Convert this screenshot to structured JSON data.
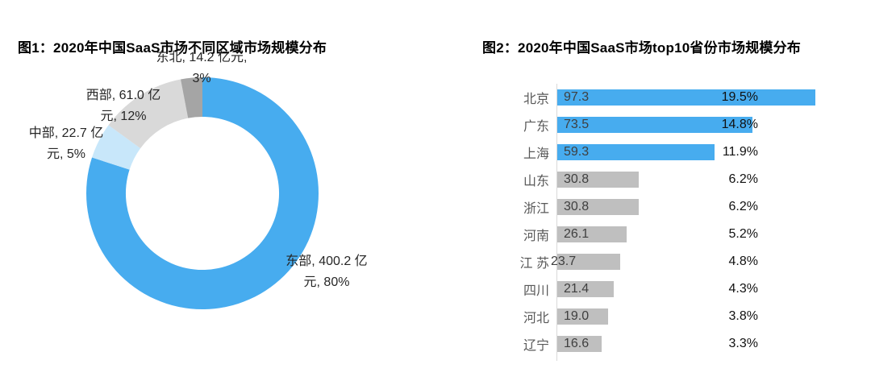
{
  "figure1": {
    "title": "图1：2020年中国SaaS市场不同区域市场规模分布"
  },
  "figure2": {
    "title": "图2：2020年中国SaaS市场top10省份市场规模分布"
  },
  "chart_data": [
    {
      "type": "pie",
      "subtype": "donut",
      "title": "图1：2020年中国SaaS市场不同区域市场规模分布",
      "unit": "亿元",
      "donut_hole_ratio": 0.66,
      "start_angle": "top",
      "direction": "clockwise",
      "slices": [
        {
          "label": "东部",
          "value": 400.2,
          "percent": 80,
          "color": "#47ACEF",
          "data_label_lines": [
            "东部, 400.2 亿",
            "元, 80%"
          ]
        },
        {
          "label": "中部",
          "value": 22.7,
          "percent": 5,
          "color": "#C8E7FA",
          "data_label_lines": [
            "中部, 22.7 亿",
            "元, 5%"
          ]
        },
        {
          "label": "西部",
          "value": 61.0,
          "percent": 12,
          "color": "#D9D9D9",
          "data_label_lines": [
            "西部, 61.0 亿",
            "元, 12%"
          ]
        },
        {
          "label": "东北",
          "value": 14.2,
          "percent": 3,
          "color": "#A5A5A5",
          "data_label_lines": [
            "东北, 14.2 亿元,",
            "3%"
          ]
        }
      ]
    },
    {
      "type": "bar",
      "orientation": "horizontal",
      "title": "图2：2020年中国SaaS市场top10省份市场规模分布",
      "xmax": 97.3,
      "highlight_color": "#47ACEF",
      "base_color": "#BFBFBF",
      "rows": [
        {
          "label": "北京",
          "value": "97.3",
          "num": 97.3,
          "percent": "19.5%",
          "color": "#47ACEF"
        },
        {
          "label": "广东",
          "value": "73.5",
          "num": 73.5,
          "percent": "14.8%",
          "color": "#47ACEF"
        },
        {
          "label": "上海",
          "value": "59.3",
          "num": 59.3,
          "percent": "11.9%",
          "color": "#47ACEF"
        },
        {
          "label": "山东",
          "value": "30.8",
          "num": 30.8,
          "percent": "6.2%",
          "color": "#BFBFBF"
        },
        {
          "label": "浙江",
          "value": "30.8",
          "num": 30.8,
          "percent": "6.2%",
          "color": "#BFBFBF"
        },
        {
          "label": "河南",
          "value": "26.1",
          "num": 26.1,
          "percent": "5.2%",
          "color": "#BFBFBF"
        },
        {
          "label": "江 苏",
          "value": "23.7",
          "num": 23.7,
          "percent": "4.8%",
          "color": "#BFBFBF",
          "value_shift": -16
        },
        {
          "label": "四川",
          "value": "21.4",
          "num": 21.4,
          "percent": "4.3%",
          "color": "#BFBFBF"
        },
        {
          "label": "河北",
          "value": "19.0",
          "num": 19.0,
          "percent": "3.8%",
          "color": "#BFBFBF"
        },
        {
          "label": "辽宁",
          "value": "16.6",
          "num": 16.6,
          "percent": "3.3%",
          "color": "#BFBFBF"
        }
      ]
    }
  ]
}
